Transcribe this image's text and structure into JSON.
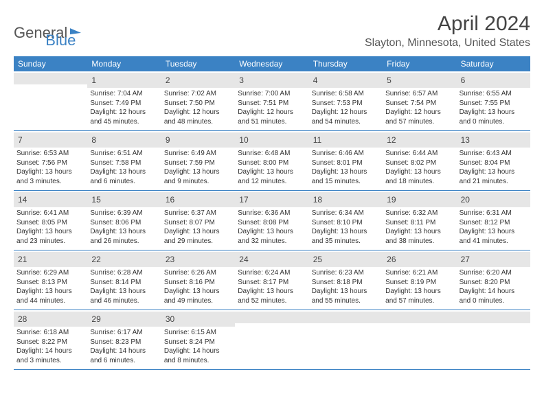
{
  "logo": {
    "text1": "General",
    "text2": "Blue"
  },
  "title": "April 2024",
  "location": "Slayton, Minnesota, United States",
  "colors": {
    "header_bg": "#3b82c4",
    "gray_bar": "#e6e6e6",
    "border": "#3b82c4"
  },
  "weekdays": [
    "Sunday",
    "Monday",
    "Tuesday",
    "Wednesday",
    "Thursday",
    "Friday",
    "Saturday"
  ],
  "weeks": [
    [
      null,
      {
        "n": "1",
        "sr": "7:04 AM",
        "ss": "7:49 PM",
        "dl": "12 hours and 45 minutes."
      },
      {
        "n": "2",
        "sr": "7:02 AM",
        "ss": "7:50 PM",
        "dl": "12 hours and 48 minutes."
      },
      {
        "n": "3",
        "sr": "7:00 AM",
        "ss": "7:51 PM",
        "dl": "12 hours and 51 minutes."
      },
      {
        "n": "4",
        "sr": "6:58 AM",
        "ss": "7:53 PM",
        "dl": "12 hours and 54 minutes."
      },
      {
        "n": "5",
        "sr": "6:57 AM",
        "ss": "7:54 PM",
        "dl": "12 hours and 57 minutes."
      },
      {
        "n": "6",
        "sr": "6:55 AM",
        "ss": "7:55 PM",
        "dl": "13 hours and 0 minutes."
      }
    ],
    [
      {
        "n": "7",
        "sr": "6:53 AM",
        "ss": "7:56 PM",
        "dl": "13 hours and 3 minutes."
      },
      {
        "n": "8",
        "sr": "6:51 AM",
        "ss": "7:58 PM",
        "dl": "13 hours and 6 minutes."
      },
      {
        "n": "9",
        "sr": "6:49 AM",
        "ss": "7:59 PM",
        "dl": "13 hours and 9 minutes."
      },
      {
        "n": "10",
        "sr": "6:48 AM",
        "ss": "8:00 PM",
        "dl": "13 hours and 12 minutes."
      },
      {
        "n": "11",
        "sr": "6:46 AM",
        "ss": "8:01 PM",
        "dl": "13 hours and 15 minutes."
      },
      {
        "n": "12",
        "sr": "6:44 AM",
        "ss": "8:02 PM",
        "dl": "13 hours and 18 minutes."
      },
      {
        "n": "13",
        "sr": "6:43 AM",
        "ss": "8:04 PM",
        "dl": "13 hours and 21 minutes."
      }
    ],
    [
      {
        "n": "14",
        "sr": "6:41 AM",
        "ss": "8:05 PM",
        "dl": "13 hours and 23 minutes."
      },
      {
        "n": "15",
        "sr": "6:39 AM",
        "ss": "8:06 PM",
        "dl": "13 hours and 26 minutes."
      },
      {
        "n": "16",
        "sr": "6:37 AM",
        "ss": "8:07 PM",
        "dl": "13 hours and 29 minutes."
      },
      {
        "n": "17",
        "sr": "6:36 AM",
        "ss": "8:08 PM",
        "dl": "13 hours and 32 minutes."
      },
      {
        "n": "18",
        "sr": "6:34 AM",
        "ss": "8:10 PM",
        "dl": "13 hours and 35 minutes."
      },
      {
        "n": "19",
        "sr": "6:32 AM",
        "ss": "8:11 PM",
        "dl": "13 hours and 38 minutes."
      },
      {
        "n": "20",
        "sr": "6:31 AM",
        "ss": "8:12 PM",
        "dl": "13 hours and 41 minutes."
      }
    ],
    [
      {
        "n": "21",
        "sr": "6:29 AM",
        "ss": "8:13 PM",
        "dl": "13 hours and 44 minutes."
      },
      {
        "n": "22",
        "sr": "6:28 AM",
        "ss": "8:14 PM",
        "dl": "13 hours and 46 minutes."
      },
      {
        "n": "23",
        "sr": "6:26 AM",
        "ss": "8:16 PM",
        "dl": "13 hours and 49 minutes."
      },
      {
        "n": "24",
        "sr": "6:24 AM",
        "ss": "8:17 PM",
        "dl": "13 hours and 52 minutes."
      },
      {
        "n": "25",
        "sr": "6:23 AM",
        "ss": "8:18 PM",
        "dl": "13 hours and 55 minutes."
      },
      {
        "n": "26",
        "sr": "6:21 AM",
        "ss": "8:19 PM",
        "dl": "13 hours and 57 minutes."
      },
      {
        "n": "27",
        "sr": "6:20 AM",
        "ss": "8:20 PM",
        "dl": "14 hours and 0 minutes."
      }
    ],
    [
      {
        "n": "28",
        "sr": "6:18 AM",
        "ss": "8:22 PM",
        "dl": "14 hours and 3 minutes."
      },
      {
        "n": "29",
        "sr": "6:17 AM",
        "ss": "8:23 PM",
        "dl": "14 hours and 6 minutes."
      },
      {
        "n": "30",
        "sr": "6:15 AM",
        "ss": "8:24 PM",
        "dl": "14 hours and 8 minutes."
      },
      null,
      null,
      null,
      null
    ]
  ],
  "labels": {
    "sunrise": "Sunrise: ",
    "sunset": "Sunset: ",
    "daylight": "Daylight: "
  }
}
